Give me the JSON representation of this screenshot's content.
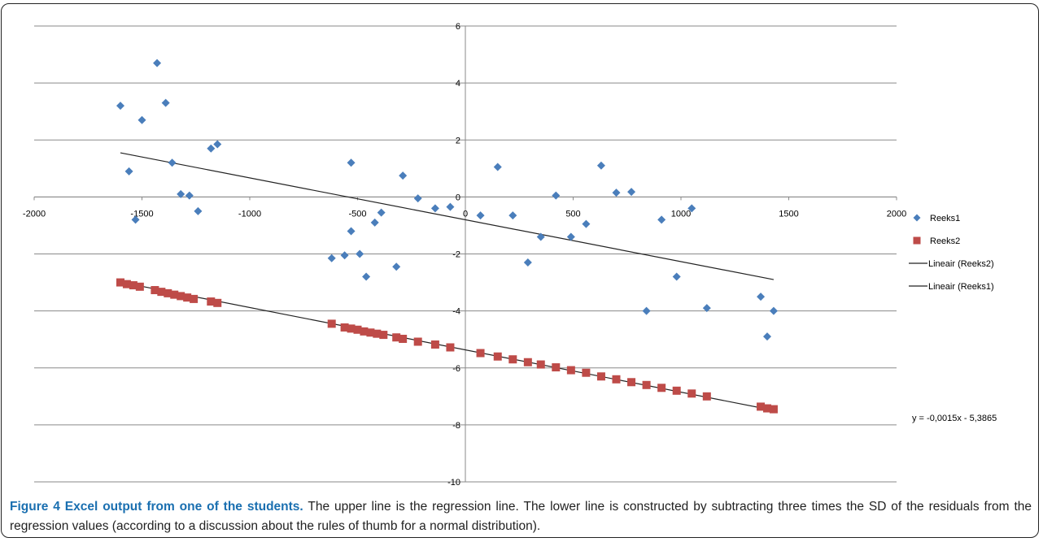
{
  "figure": {
    "caption_title": "Figure 4 Excel output from one of the students.",
    "caption_text": " The upper line is the regression line. The lower line is constructed by subtracting three times the SD of the residuals from the regression values (according to a discussion about the rules of thumb for a normal distribution)."
  },
  "chart_data": {
    "type": "scatter",
    "title": "",
    "xlabel": "",
    "ylabel": "",
    "xlim": [
      -2000,
      2000
    ],
    "ylim": [
      -10,
      6
    ],
    "x_ticks": [
      "-2000",
      "-1500",
      "-1000",
      "-500",
      "0",
      "500",
      "1000",
      "1500",
      "2000"
    ],
    "y_ticks": [
      "6",
      "4",
      "2",
      "0",
      "-2",
      "-4",
      "-6",
      "-8",
      "-10"
    ],
    "grid": "horizontal",
    "legend_position": "right",
    "colors": {
      "Reeks1": "#4a7ebb",
      "Reeks2": "#be4b48",
      "trendline": "#222222"
    },
    "equation": "y = -0,0015x - 5,3865",
    "series": [
      {
        "name": "Reeks1",
        "marker": "diamond",
        "points": [
          [
            -1600,
            3.2
          ],
          [
            -1560,
            0.9
          ],
          [
            -1530,
            -0.8
          ],
          [
            -1500,
            2.7
          ],
          [
            -1430,
            4.7
          ],
          [
            -1390,
            3.3
          ],
          [
            -1360,
            1.2
          ],
          [
            -1320,
            0.1
          ],
          [
            -1280,
            0.05
          ],
          [
            -1240,
            -0.5
          ],
          [
            -1180,
            1.7
          ],
          [
            -1150,
            1.85
          ],
          [
            -620,
            -2.15
          ],
          [
            -560,
            -2.05
          ],
          [
            -530,
            -1.2
          ],
          [
            -530,
            1.2
          ],
          [
            -490,
            -2.0
          ],
          [
            -460,
            -2.8
          ],
          [
            -420,
            -0.9
          ],
          [
            -390,
            -0.55
          ],
          [
            -320,
            -2.45
          ],
          [
            -290,
            0.75
          ],
          [
            -220,
            -0.05
          ],
          [
            -140,
            -0.4
          ],
          [
            -70,
            -0.35
          ],
          [
            70,
            -0.65
          ],
          [
            150,
            1.05
          ],
          [
            220,
            -0.65
          ],
          [
            290,
            -2.3
          ],
          [
            350,
            -1.4
          ],
          [
            420,
            0.05
          ],
          [
            490,
            -1.4
          ],
          [
            560,
            -0.95
          ],
          [
            630,
            1.1
          ],
          [
            700,
            0.15
          ],
          [
            770,
            0.18
          ],
          [
            840,
            -4.0
          ],
          [
            910,
            -0.8
          ],
          [
            980,
            -2.8
          ],
          [
            1050,
            -0.4
          ],
          [
            1120,
            -3.9
          ],
          [
            1370,
            -3.5
          ],
          [
            1400,
            -4.9
          ],
          [
            1430,
            -4.0
          ]
        ]
      },
      {
        "name": "Reeks2",
        "marker": "square",
        "points": [
          [
            -1600,
            -3.0
          ],
          [
            -1570,
            -3.06
          ],
          [
            -1540,
            -3.1
          ],
          [
            -1510,
            -3.15
          ],
          [
            -1440,
            -3.27
          ],
          [
            -1410,
            -3.33
          ],
          [
            -1380,
            -3.38
          ],
          [
            -1350,
            -3.43
          ],
          [
            -1320,
            -3.48
          ],
          [
            -1290,
            -3.53
          ],
          [
            -1260,
            -3.58
          ],
          [
            -1180,
            -3.67
          ],
          [
            -1150,
            -3.72
          ],
          [
            -620,
            -4.45
          ],
          [
            -560,
            -4.58
          ],
          [
            -530,
            -4.62
          ],
          [
            -500,
            -4.66
          ],
          [
            -470,
            -4.72
          ],
          [
            -440,
            -4.76
          ],
          [
            -410,
            -4.8
          ],
          [
            -380,
            -4.84
          ],
          [
            -320,
            -4.93
          ],
          [
            -290,
            -4.98
          ],
          [
            -220,
            -5.08
          ],
          [
            -140,
            -5.18
          ],
          [
            -70,
            -5.28
          ],
          [
            70,
            -5.48
          ],
          [
            150,
            -5.6
          ],
          [
            220,
            -5.7
          ],
          [
            290,
            -5.8
          ],
          [
            350,
            -5.88
          ],
          [
            420,
            -5.98
          ],
          [
            490,
            -6.08
          ],
          [
            560,
            -6.17
          ],
          [
            630,
            -6.3
          ],
          [
            700,
            -6.4
          ],
          [
            770,
            -6.5
          ],
          [
            840,
            -6.6
          ],
          [
            910,
            -6.7
          ],
          [
            980,
            -6.8
          ],
          [
            1050,
            -6.9
          ],
          [
            1120,
            -7.0
          ],
          [
            1370,
            -7.36
          ],
          [
            1400,
            -7.42
          ],
          [
            1430,
            -7.45
          ]
        ]
      },
      {
        "name": "Lineair (Reeks2)",
        "type": "line",
        "points": [
          [
            -1600,
            -2.99
          ],
          [
            1430,
            -7.49
          ]
        ]
      },
      {
        "name": "Lineair (Reeks1)",
        "type": "line",
        "points": [
          [
            -1600,
            1.55
          ],
          [
            1430,
            -2.9
          ]
        ]
      }
    ]
  }
}
